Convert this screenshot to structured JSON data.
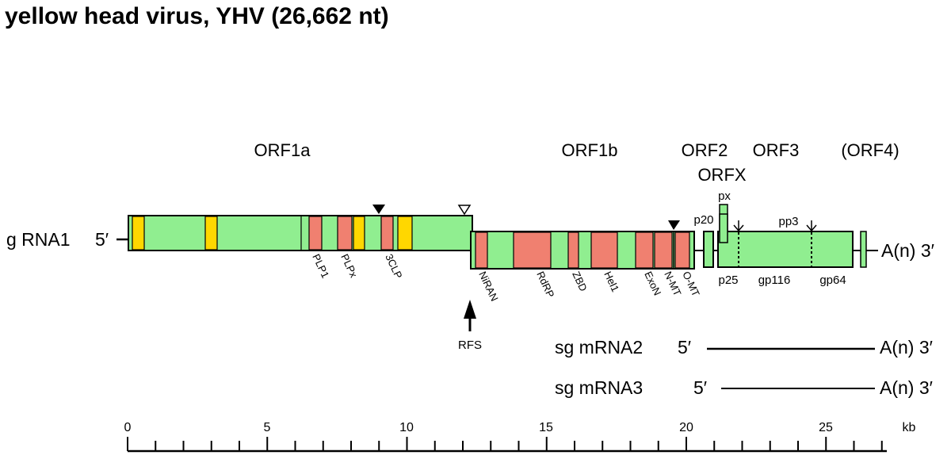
{
  "title": "yellow head virus, YHV (26,662 nt)",
  "colors": {
    "green": "#90ee90",
    "red": "#f08070",
    "yellow": "#ffd700"
  },
  "orf_labels": {
    "orf1a": "ORF1a",
    "orf1b": "ORF1b",
    "orf2": "ORF2",
    "orfx": "ORFX",
    "orf3": "ORF3",
    "orf4": "(ORF4)"
  },
  "grna": {
    "label": "g RNA1",
    "five": "5′",
    "three": "A(n) 3′"
  },
  "domains_1a": {
    "plp1": "PLP1",
    "plpx": "PLPx",
    "clp3": "3CLP"
  },
  "domains_1b": {
    "niran": "NiRAN",
    "rdrp": "RdRP",
    "zbd": "ZBD",
    "hel1": "Hel1",
    "exon": "ExoN",
    "nmt": "N-MT",
    "omt": "O-MT"
  },
  "proteins": {
    "px": "px",
    "p20": "p20",
    "pp3": "pp3",
    "p25": "p25",
    "gp116": "gp116",
    "gp64": "gp64"
  },
  "rfs": "RFS",
  "sg_mrna": [
    {
      "label": "sg mRNA2",
      "five": "5′",
      "three": "A(n) 3′"
    },
    {
      "label": "sg mRNA3",
      "five": "5′",
      "three": "A(n) 3′"
    }
  ],
  "scale": {
    "ticks": [
      "0",
      "5",
      "10",
      "15",
      "20",
      "25"
    ],
    "unit": "kb"
  }
}
